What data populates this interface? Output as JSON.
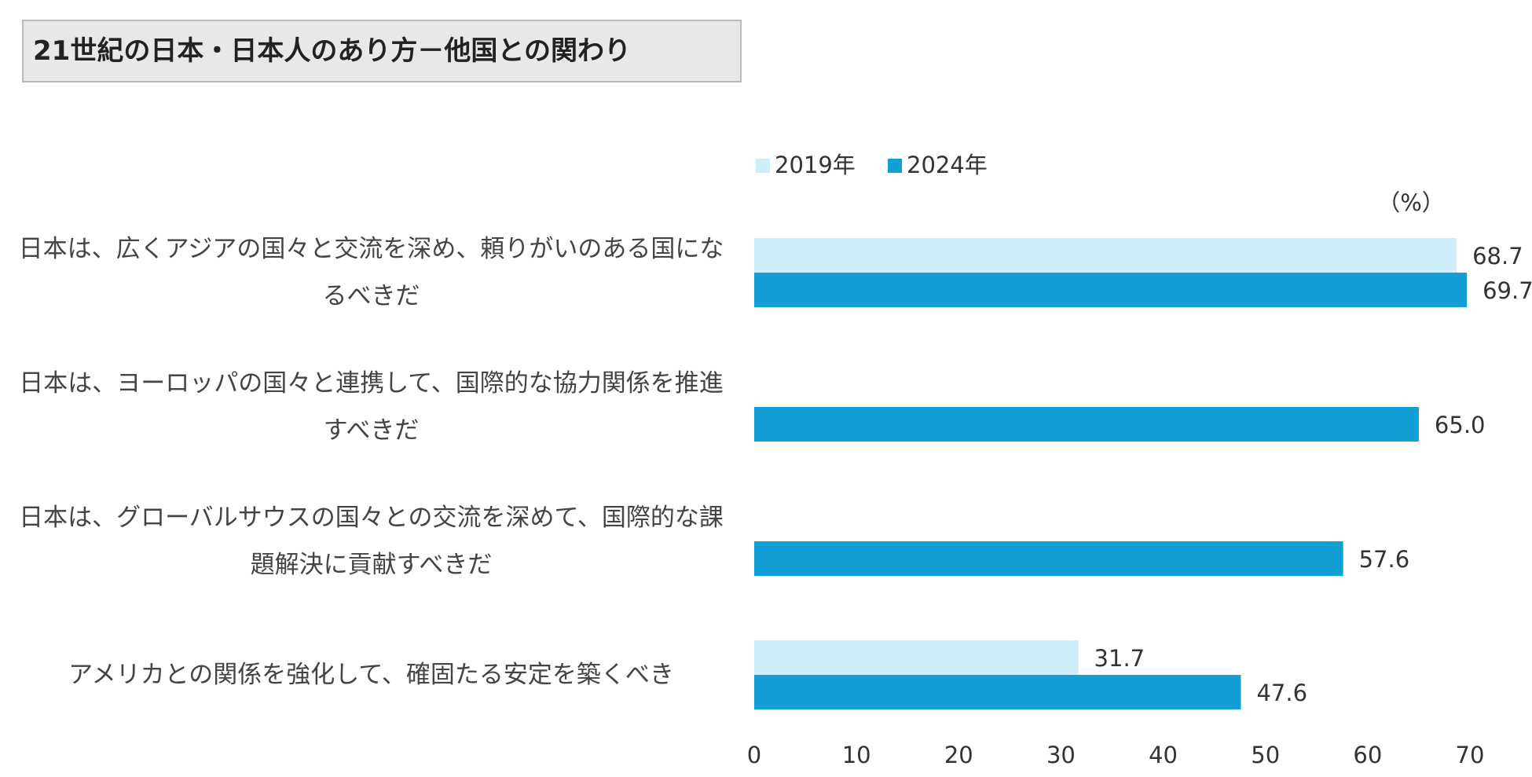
{
  "chart_data": {
    "type": "hbar",
    "title": "21世紀の日本・日本人のあり方－他国との関わり",
    "unit_label": "（%）",
    "categories": [
      "日本は、広くアジアの国々と交流を深め、頼りがいのある国になるべきだ",
      "日本は、ヨーロッパの国々と連携して、国際的な協力関係を推進すべきだ",
      "日本は、グローバルサウスの国々との交流を深めて、国際的な課題解決に貢献すべきだ",
      "アメリカとの関係を強化して、確固たる安定を築くべき"
    ],
    "series": [
      {
        "name": "2019年",
        "color": "#cdeefa",
        "values": [
          68.7,
          null,
          null,
          31.7
        ],
        "value_labels": [
          "68.7",
          null,
          null,
          "31.7"
        ]
      },
      {
        "name": "2024年",
        "color": "#129fd6",
        "values": [
          69.7,
          65.0,
          57.6,
          47.6
        ],
        "value_labels": [
          "69.7",
          "65.0",
          "57.6",
          "47.6"
        ]
      }
    ],
    "xlim": [
      0,
      70
    ],
    "xticks": [
      0,
      10,
      20,
      30,
      40,
      50,
      60,
      70
    ],
    "grid": false,
    "legend": "top"
  }
}
